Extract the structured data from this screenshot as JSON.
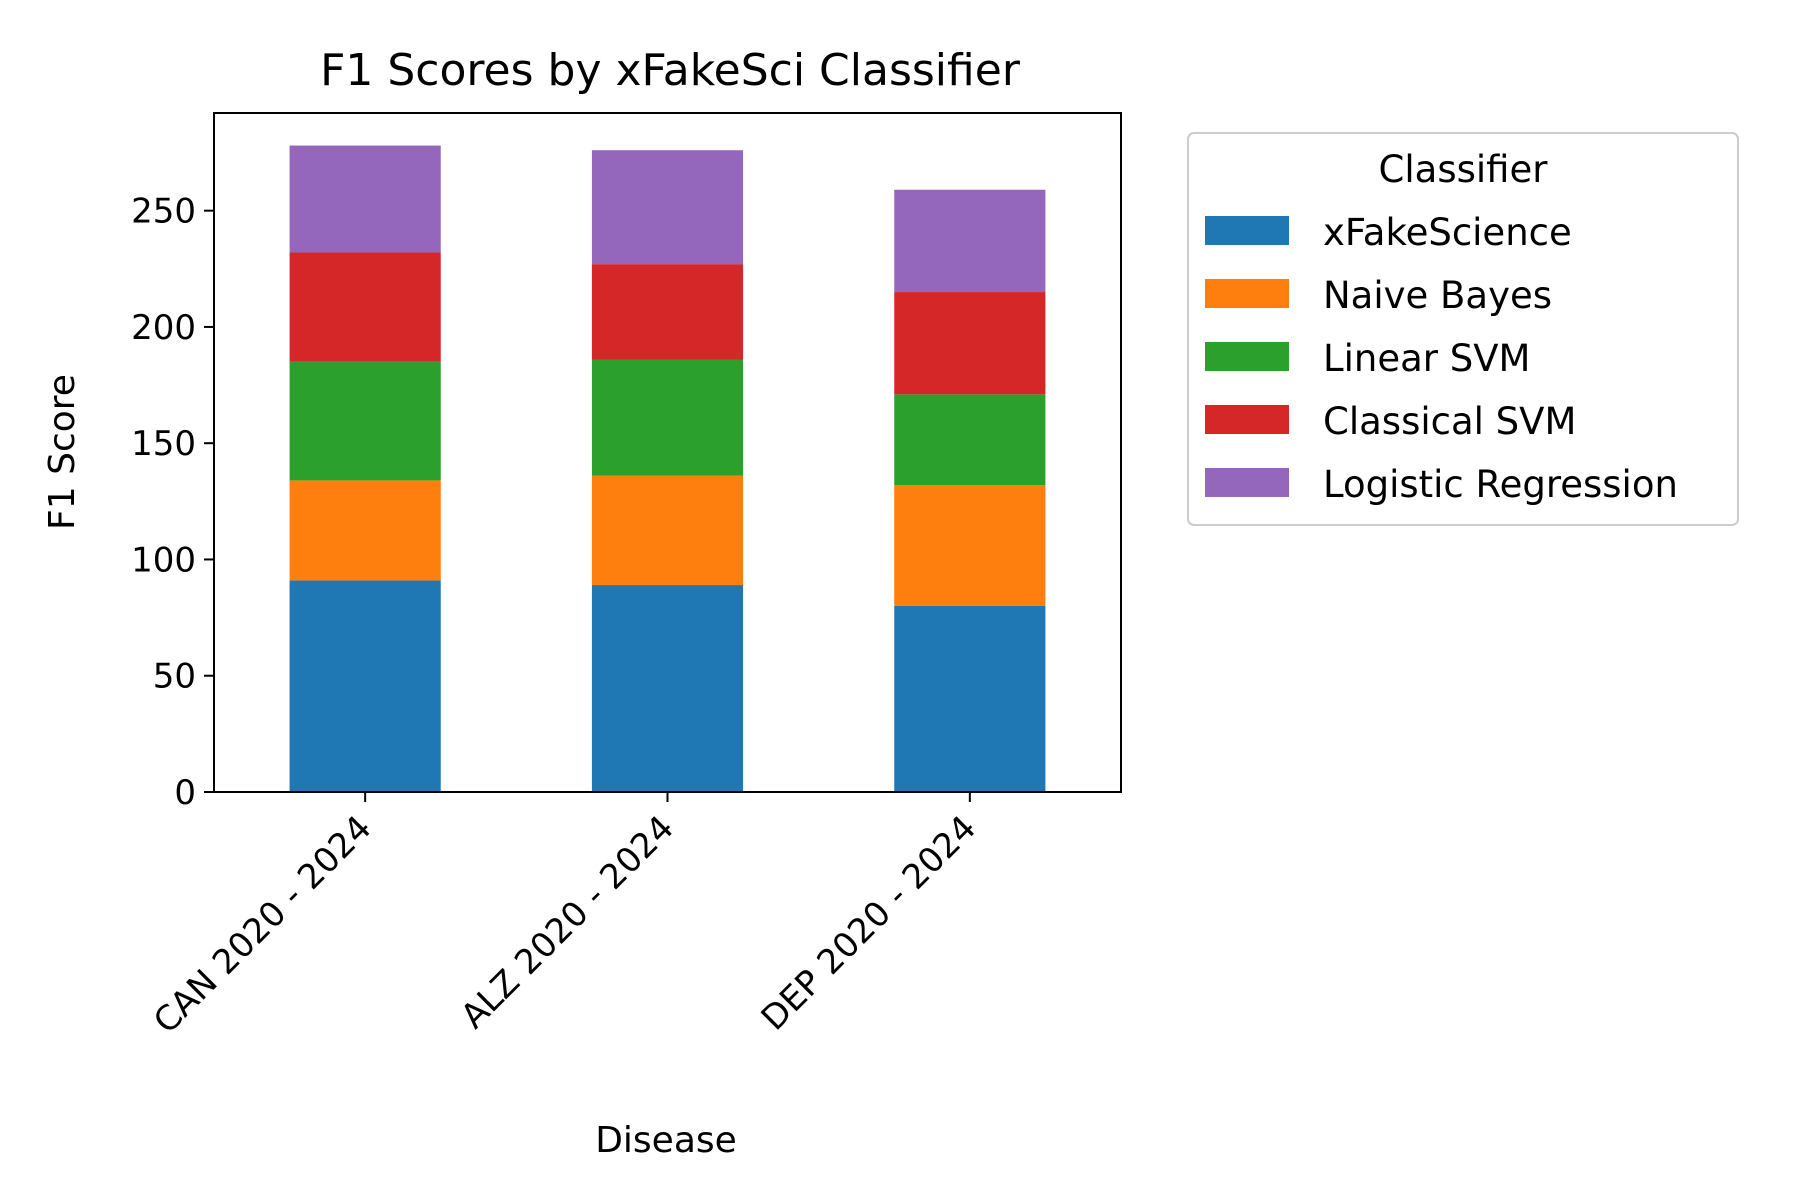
{
  "chart_data": {
    "type": "bar",
    "stacked": true,
    "title": "F1 Scores by xFakeSci Classifier",
    "xlabel": "Disease",
    "ylabel": "F1 Score",
    "categories": [
      "CAN 2020 - 2024",
      "ALZ 2020 - 2024",
      "DEP 2020 - 2024"
    ],
    "ylim": [
      0,
      292
    ],
    "yticks": [
      0,
      50,
      100,
      150,
      200,
      250
    ],
    "legend": {
      "title": "Classifier",
      "placement": "outside-right"
    },
    "grid": false,
    "series": [
      {
        "name": "xFakeScience",
        "color": "#1f77b4",
        "values": [
          91,
          89,
          80
        ]
      },
      {
        "name": "Naive Bayes",
        "color": "#ff7f0e",
        "values": [
          43,
          47,
          52
        ]
      },
      {
        "name": "Linear SVM",
        "color": "#2ca02c",
        "values": [
          51,
          50,
          39
        ]
      },
      {
        "name": "Classical SVM",
        "color": "#d62728",
        "values": [
          47,
          41,
          44
        ]
      },
      {
        "name": "Logistic Regression",
        "color": "#9467bd",
        "values": [
          46,
          49,
          44
        ]
      }
    ]
  }
}
